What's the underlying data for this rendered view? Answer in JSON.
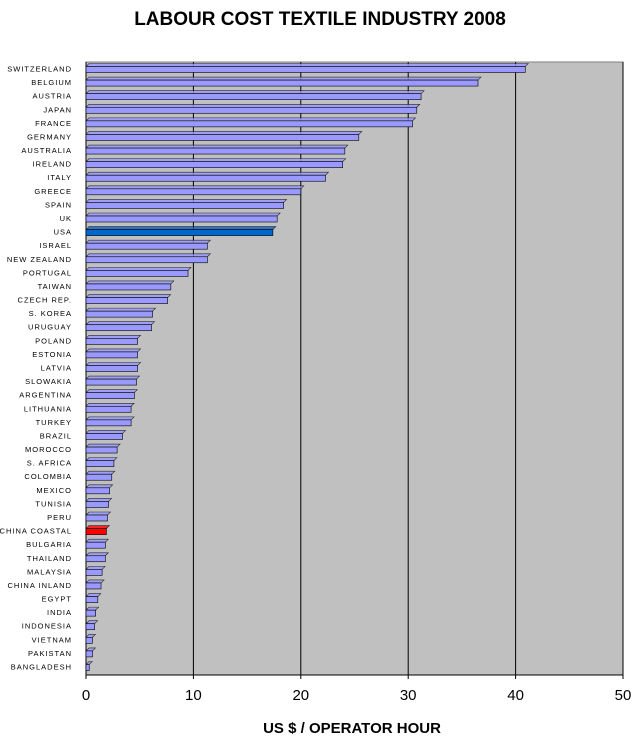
{
  "chart_data": {
    "type": "hbar",
    "title": "LABOUR COST TEXTILE INDUSTRY 2008",
    "x_label": "US $ / OPERATOR HOUR",
    "categories": [
      "SWITZERLAND",
      "BELGIUM",
      "AUSTRIA",
      "JAPAN",
      "FRANCE",
      "GERMANY",
      "AUSTRALIA",
      "IRELAND",
      "ITALY",
      "GREECE",
      "SPAIN",
      "UK",
      "USA",
      "ISRAEL",
      "NEW ZEALAND",
      "PORTUGAL",
      "TAIWAN",
      "CZECH REP.",
      "S. KOREA",
      "URUGUAY",
      "POLAND",
      "ESTONIA",
      "LATVIA",
      "SLOWAKIA",
      "ARGENTINA",
      "LITHUANIA",
      "TURKEY",
      "BRAZIL",
      "MOROCCO",
      "S. AFRICA",
      "COLOMBIA",
      "MEXICO",
      "TUNISIA",
      "PERU",
      "CHINA COASTAL",
      "BULGARIA",
      "THAILAND",
      "MALAYSIA",
      "CHINA INLAND",
      "EGYPT",
      "INDIA",
      "INDONESIA",
      "VIETNAM",
      "PAKISTAN",
      "BANGLADESH"
    ],
    "values": [
      40.9,
      36.5,
      31.2,
      30.8,
      30.4,
      25.4,
      24.1,
      23.9,
      22.3,
      20.0,
      18.4,
      17.8,
      17.4,
      11.3,
      11.3,
      9.5,
      7.9,
      7.6,
      6.2,
      6.1,
      4.8,
      4.8,
      4.8,
      4.7,
      4.5,
      4.2,
      4.2,
      3.4,
      2.9,
      2.6,
      2.4,
      2.2,
      2.1,
      2.0,
      1.9,
      1.8,
      1.8,
      1.5,
      1.4,
      1.1,
      0.9,
      0.8,
      0.6,
      0.6,
      0.3
    ],
    "color": "#9999ff",
    "highlight_colors": {
      "USA": "#0066cc",
      "CHINA COASTAL": "#ff0000"
    },
    "xlim": [
      0,
      50
    ],
    "xticks": [
      0,
      10,
      20,
      30,
      40,
      50
    ],
    "grid": true
  }
}
